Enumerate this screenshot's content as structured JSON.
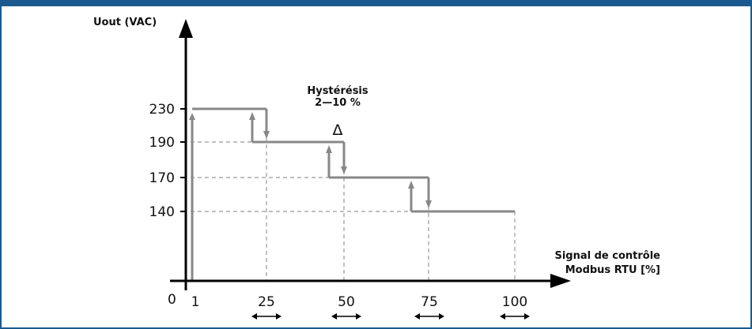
{
  "chart_data": {
    "type": "line",
    "ylabel": "Uout (VAC)",
    "xlabel_lines": [
      "Signal de contrôle",
      "Modbus RTU [%]"
    ],
    "origin_label": "0",
    "x_ticks": [
      "1",
      "25",
      "50",
      "75",
      "100"
    ],
    "y_ticks": [
      "230",
      "190",
      "170",
      "140"
    ],
    "annotation_lines": [
      "Hystérésis",
      "2—10 %"
    ],
    "delta_symbol": "Δ",
    "steps": [
      {
        "x_start": 1,
        "x_end": 25,
        "y": 230
      },
      {
        "x_start": 25,
        "x_end": 50,
        "y": 190
      },
      {
        "x_start": 50,
        "x_end": 75,
        "y": 170
      },
      {
        "x_start": 75,
        "x_end": 100,
        "y": 140
      }
    ],
    "hysteresis": [
      {
        "x_up": 20,
        "x_down": 25,
        "y_high": 230,
        "y_low": 190
      },
      {
        "x_up": 45,
        "x_down": 50,
        "y_high": 190,
        "y_low": 170
      },
      {
        "x_up": 70,
        "x_down": 75,
        "y_high": 170,
        "y_low": 140
      }
    ],
    "grid": "dashed guide lines",
    "colors": {
      "line": "#888888",
      "dash": "#999999",
      "axis": "#000000",
      "border": "#1a5a8e"
    }
  }
}
